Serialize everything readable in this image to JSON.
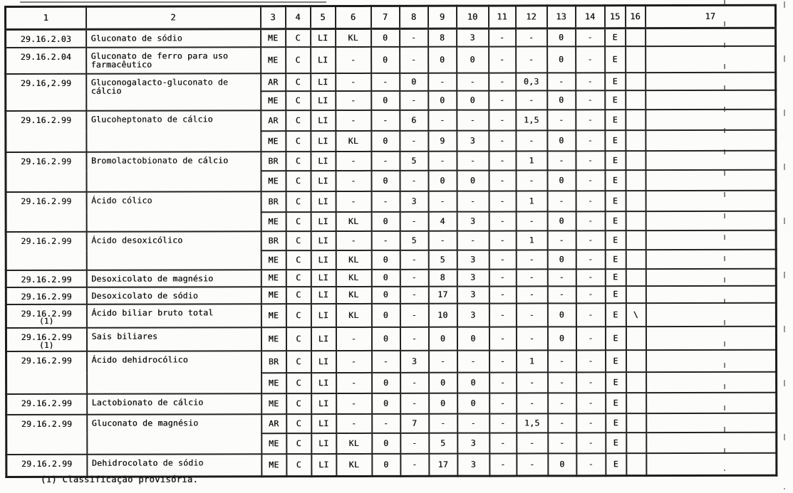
{
  "page": {
    "footnote": "(1) Classificação provisória."
  },
  "table": {
    "headers": [
      "1",
      "2",
      "3",
      "4",
      "5",
      "6",
      "7",
      "8",
      "9",
      "10",
      "11",
      "12",
      "13",
      "14",
      "15",
      "16",
      "17"
    ],
    "rows": [
      {
        "code": "29.16.2.03",
        "name": "Gluconato de sódio",
        "subrows": [
          [
            "ME",
            "C",
            "LI",
            "KL",
            "0",
            "-",
            "8",
            "3",
            "-",
            "-",
            "0",
            "-",
            "E",
            "",
            ""
          ]
        ]
      },
      {
        "code": "29.16.2.04",
        "name": "Gluconato de ferro para uso farmacêutico",
        "subrows": [
          [
            "ME",
            "C",
            "LI",
            "-",
            "0",
            "-",
            "0",
            "0",
            "-",
            "-",
            "0",
            "-",
            "E",
            "",
            ""
          ]
        ]
      },
      {
        "code": "29.16,2.99",
        "name": "Gluconogalacto-gluconato de cálcio",
        "subrows": [
          [
            "AR",
            "C",
            "LI",
            "-",
            "-",
            "0",
            "-",
            "-",
            "-",
            "0,3",
            "-",
            "-",
            "E",
            "",
            ""
          ],
          [
            "ME",
            "C",
            "LI",
            "-",
            "0",
            "-",
            "0",
            "0",
            "-",
            "-",
            "0",
            "-",
            "E",
            "",
            ""
          ]
        ]
      },
      {
        "code": "29.16.2.99",
        "name": "Glucoheptonato de cálcio",
        "subrows": [
          [
            "AR",
            "C",
            "LI",
            "-",
            "-",
            "6",
            "-",
            "-",
            "-",
            "1,5",
            "-",
            "-",
            "E",
            "",
            ""
          ],
          [
            "ME",
            "C",
            "LI",
            "KL",
            "0",
            "-",
            "9",
            "3",
            "-",
            "-",
            "0",
            "-",
            "E",
            "",
            ""
          ]
        ]
      },
      {
        "code": "29.16.2.99",
        "name": "Bromolactobionato de cálcio",
        "subrows": [
          [
            "BR",
            "C",
            "LI",
            "-",
            "-",
            "5",
            "-",
            "-",
            "-",
            "1",
            "-",
            "-",
            "E",
            "",
            ""
          ],
          [
            "ME",
            "C",
            "LI",
            "-",
            "0",
            "-",
            "0",
            "0",
            "-",
            "-",
            "0",
            "-",
            "E",
            "",
            ""
          ]
        ]
      },
      {
        "code": "29.16.2.99",
        "name": "Ácido cólico",
        "subrows": [
          [
            "BR",
            "C",
            "LI",
            "-",
            "-",
            "3",
            "-",
            "-",
            "-",
            "1",
            "-",
            "-",
            "E",
            "",
            ""
          ],
          [
            "ME",
            "C",
            "LI",
            "KL",
            "0",
            "-",
            "4",
            "3",
            "-",
            "-",
            "0",
            "-",
            "E",
            "",
            ""
          ]
        ]
      },
      {
        "code": "29.16.2.99",
        "name": "Ácido desoxicólico",
        "subrows": [
          [
            "BR",
            "C",
            "LI",
            "-",
            "-",
            "5",
            "-",
            "-",
            "-",
            "1",
            "-",
            "-",
            "E",
            "",
            ""
          ],
          [
            "ME",
            "C",
            "LI",
            "KL",
            "0",
            "-",
            "5",
            "3",
            "-",
            "-",
            "0",
            "-",
            "E",
            "",
            ""
          ]
        ]
      },
      {
        "code": "29.16.2.99",
        "name": "Desoxicolato de magnésio",
        "subrows": [
          [
            "ME",
            "C",
            "LI",
            "KL",
            "0",
            "-",
            "8",
            "3",
            "-",
            "-",
            "-",
            "-",
            "E",
            "",
            ""
          ]
        ]
      },
      {
        "code": "29.16.2.99",
        "name": "Desoxicolato de sódio",
        "subrows": [
          [
            "ME",
            "C",
            "LI",
            "KL",
            "0",
            "-",
            "17",
            "3",
            "-",
            "-",
            "-",
            "-",
            "E",
            "",
            ""
          ]
        ]
      },
      {
        "code": "29.16.2.99",
        "code2": "(1)",
        "name": "Ácido biliar bruto total",
        "subrows": [
          [
            "ME",
            "C",
            "LI",
            "KL",
            "0",
            "-",
            "10",
            "3",
            "-",
            "-",
            "0",
            "-",
            "E",
            "\\",
            ""
          ]
        ]
      },
      {
        "code": "29.16.2.99",
        "code2": "(1)",
        "name": "Sais biliares",
        "subrows": [
          [
            "ME",
            "C",
            "LI",
            "-",
            "0",
            "-",
            "0",
            "0",
            "-",
            "-",
            "0",
            "-",
            "E",
            "",
            ""
          ]
        ]
      },
      {
        "code": "29.16.2.99",
        "name": "Ácido dehidrocólico",
        "subrows": [
          [
            "BR",
            "C",
            "LI",
            "-",
            "-",
            "3",
            "-",
            "-",
            "-",
            "1",
            "-",
            "-",
            "E",
            "",
            ""
          ],
          [
            "ME",
            "C",
            "LI",
            "-",
            "0",
            "-",
            "0",
            "0",
            "-",
            "-",
            "-",
            "-",
            "E",
            "",
            ""
          ]
        ]
      },
      {
        "code": "29.16.2.99",
        "name": "Lactobionato de cálcio",
        "subrows": [
          [
            "ME",
            "C",
            "LI",
            "-",
            "0",
            "-",
            "0",
            "0",
            "-",
            "-",
            "-",
            "-",
            "E",
            "",
            ""
          ]
        ]
      },
      {
        "code": "29.16.2.99",
        "name": "Gluconato de magnésio",
        "subrows": [
          [
            "AR",
            "C",
            "LI",
            "-",
            "-",
            "7",
            "-",
            "-",
            "-",
            "1,5",
            "-",
            "-",
            "E",
            "",
            ""
          ],
          [
            "ME",
            "C",
            "LI",
            "KL",
            "0",
            "-",
            "5",
            "3",
            "-",
            "-",
            "-",
            "-",
            "E",
            "",
            ""
          ]
        ]
      },
      {
        "code": "29.16.2.99",
        "name": "Dehidrocolato de sódio",
        "subrows": [
          [
            "ME",
            "C",
            "LI",
            "KL",
            "0",
            "-",
            "17",
            "3",
            "-",
            "-",
            "0",
            "-",
            "E",
            "",
            ""
          ]
        ]
      }
    ]
  }
}
